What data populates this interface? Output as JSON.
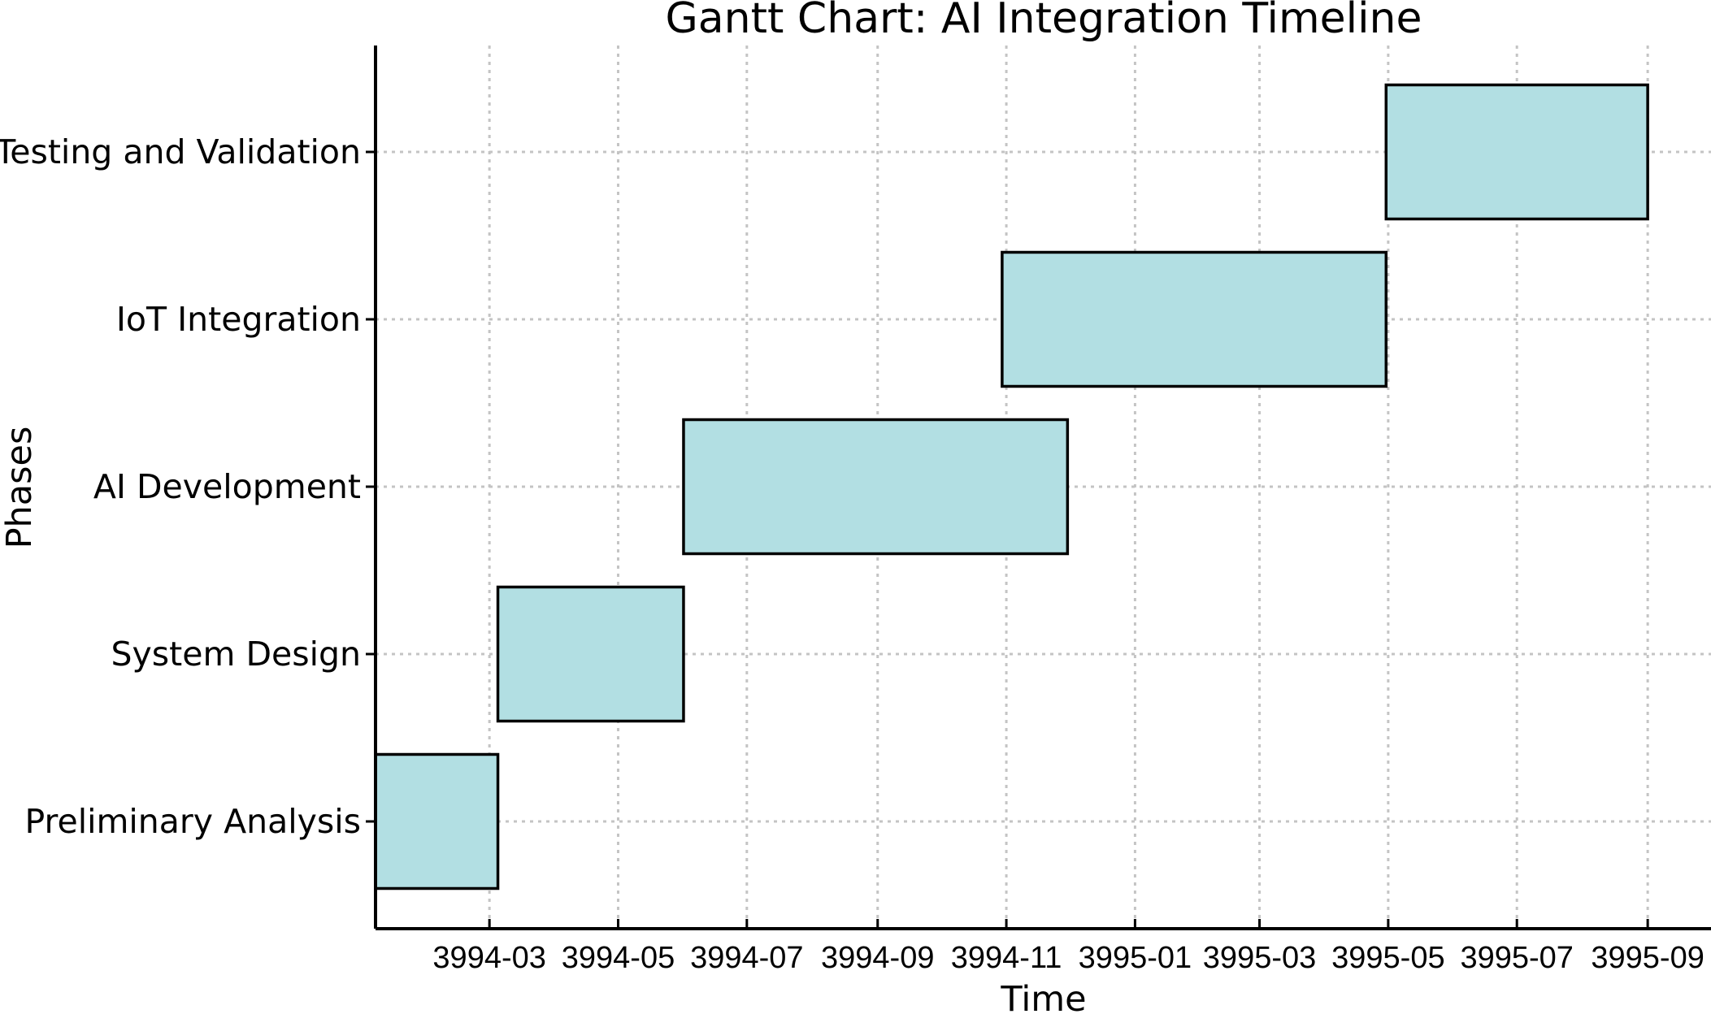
{
  "chart_data": {
    "type": "gantt",
    "title": "Gantt Chart: AI Integration Timeline",
    "xlabel": "Time",
    "ylabel": "Phases",
    "categories": [
      "Preliminary Analysis",
      "System Design",
      "AI Development",
      "IoT Integration",
      "Testing and Validation"
    ],
    "tasks": [
      {
        "name": "Preliminary Analysis",
        "start": "3994-01-06",
        "end": "3994-03-05"
      },
      {
        "name": "System Design",
        "start": "3994-03-05",
        "end": "3994-06-01"
      },
      {
        "name": "AI Development",
        "start": "3994-06-01",
        "end": "3994-11-30"
      },
      {
        "name": "IoT Integration",
        "start": "3994-10-30",
        "end": "3995-04-30"
      },
      {
        "name": "Testing and Validation",
        "start": "3995-04-30",
        "end": "3995-09-01"
      }
    ],
    "xlim": [
      "3994-01-06",
      "3995-10-01"
    ],
    "x_ticks": [
      "3994-03",
      "3994-05",
      "3994-07",
      "3994-09",
      "3994-11",
      "3995-01",
      "3995-03",
      "3995-05",
      "3995-07",
      "3995-09"
    ],
    "grid": true,
    "bar_color": "#b2dfe3",
    "bar_edge_color": "#000000"
  }
}
